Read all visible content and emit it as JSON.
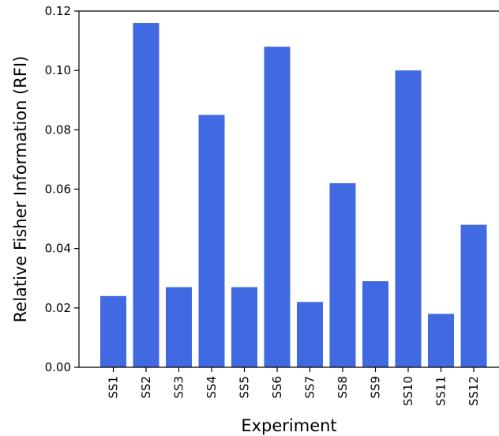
{
  "chart_data": {
    "type": "bar",
    "title": "",
    "xlabel": "Experiment",
    "ylabel": "Relative Fisher Information (RFI)",
    "categories": [
      "SS1",
      "SS2",
      "SS3",
      "SS4",
      "SS5",
      "SS6",
      "SS7",
      "SS8",
      "SS9",
      "SS10",
      "SS11",
      "SS12"
    ],
    "values": [
      0.024,
      0.116,
      0.027,
      0.085,
      0.027,
      0.108,
      0.022,
      0.062,
      0.029,
      0.1,
      0.018,
      0.048
    ],
    "ylim": [
      0,
      0.12
    ],
    "yticks": [
      0.0,
      0.02,
      0.04,
      0.06,
      0.08,
      0.1,
      0.12
    ],
    "ytick_labels": [
      "0.00",
      "0.02",
      "0.04",
      "0.06",
      "0.08",
      "0.10",
      "0.12"
    ],
    "grid": false,
    "legend": "none",
    "bar_color": "#4169e1"
  }
}
